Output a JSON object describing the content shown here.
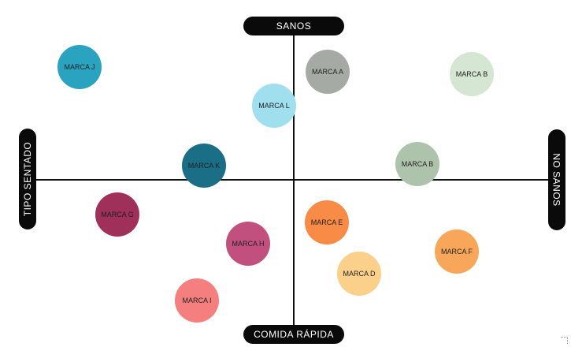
{
  "axes": {
    "top": "SANOS",
    "bottom": "COMIDA RÁPIDA",
    "left": "TIPO SENTADO",
    "right": "NO SANOS"
  },
  "brands": [
    {
      "label": "MARCA J",
      "color": "#2aa3c1"
    },
    {
      "label": "MARCA A",
      "color": "#a6aaa5"
    },
    {
      "label": "MARCA B",
      "color": "#d5e7d2"
    },
    {
      "label": "MARCA L",
      "color": "#a0dfee"
    },
    {
      "label": "MARCA K",
      "color": "#1a6f86"
    },
    {
      "label": "MARCA B",
      "color": "#aec3ac"
    },
    {
      "label": "MARCA G",
      "color": "#9e3059"
    },
    {
      "label": "MARCA E",
      "color": "#f88b45"
    },
    {
      "label": "MARCA H",
      "color": "#c1507f"
    },
    {
      "label": "MARCA F",
      "color": "#f8a75a"
    },
    {
      "label": "MARCA D",
      "color": "#fbd08a"
    },
    {
      "label": "MARCA I",
      "color": "#f57f7f"
    }
  ]
}
